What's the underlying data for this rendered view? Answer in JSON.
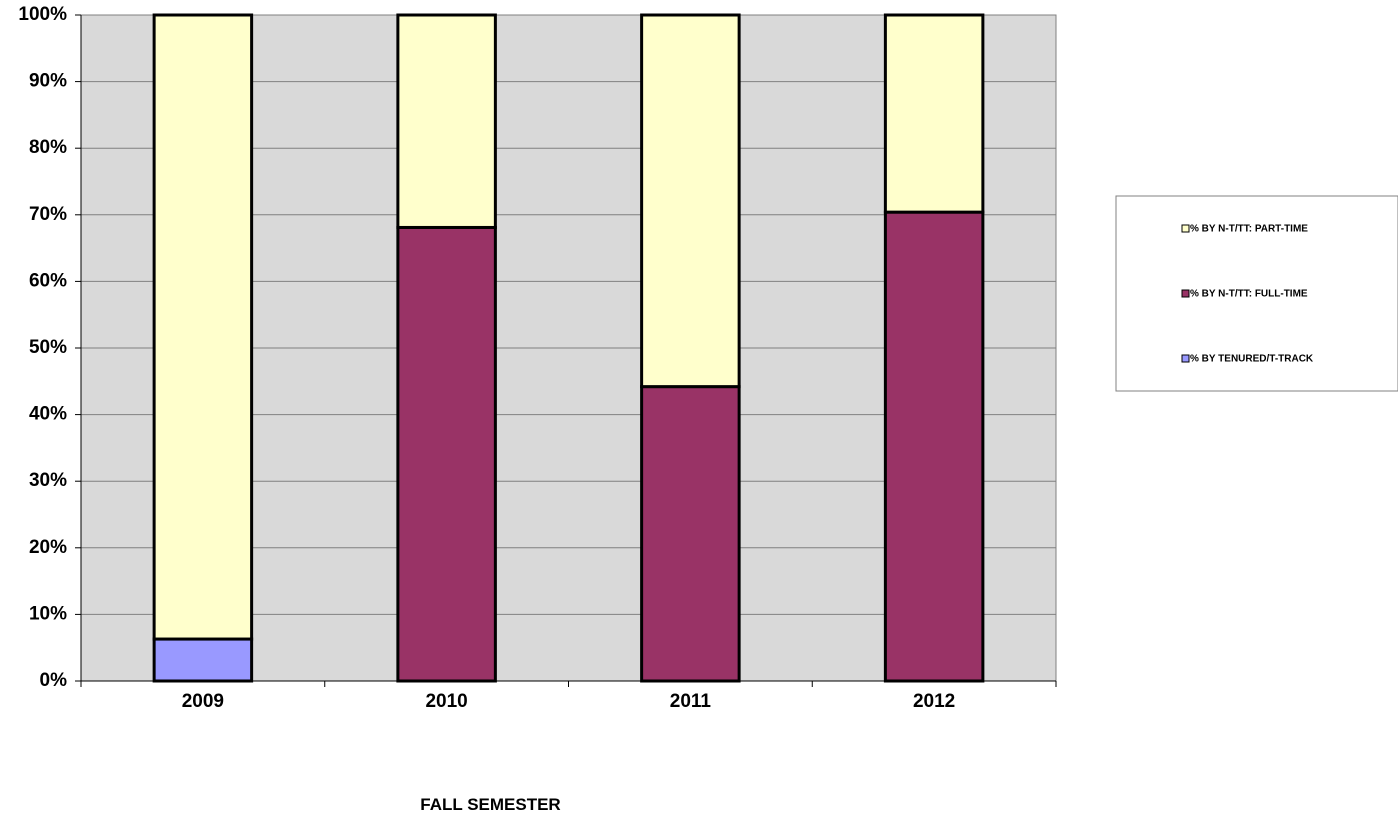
{
  "chart_data": {
    "type": "bar",
    "stacked": true,
    "percent_stacked": true,
    "categories": [
      "2009",
      "2010",
      "2011",
      "2012"
    ],
    "series": [
      {
        "name": "% BY TENURED/T-TRACK",
        "color": "#9999FF",
        "values": [
          6.3,
          0,
          0,
          0
        ]
      },
      {
        "name": "% BY N-T/TT: FULL-TIME",
        "color": "#993366",
        "values": [
          0,
          68.1,
          44.2,
          70.4
        ]
      },
      {
        "name": "% BY N-T/TT: PART-TIME",
        "color": "#FFFFCC",
        "values": [
          93.7,
          31.9,
          55.8,
          29.6
        ]
      }
    ],
    "y_ticks": [
      "0%",
      "10%",
      "20%",
      "30%",
      "40%",
      "50%",
      "60%",
      "70%",
      "80%",
      "90%",
      "100%"
    ],
    "ylim": [
      0,
      100
    ],
    "xlabel": "FALL SEMESTER",
    "ylabel": "",
    "title": "",
    "grid": true,
    "plot_background": "#D9D9D9",
    "legend_position": "right",
    "legend_order": [
      "% BY N-T/TT: PART-TIME",
      "% BY N-T/TT: FULL-TIME",
      "% BY TENURED/T-TRACK"
    ]
  }
}
